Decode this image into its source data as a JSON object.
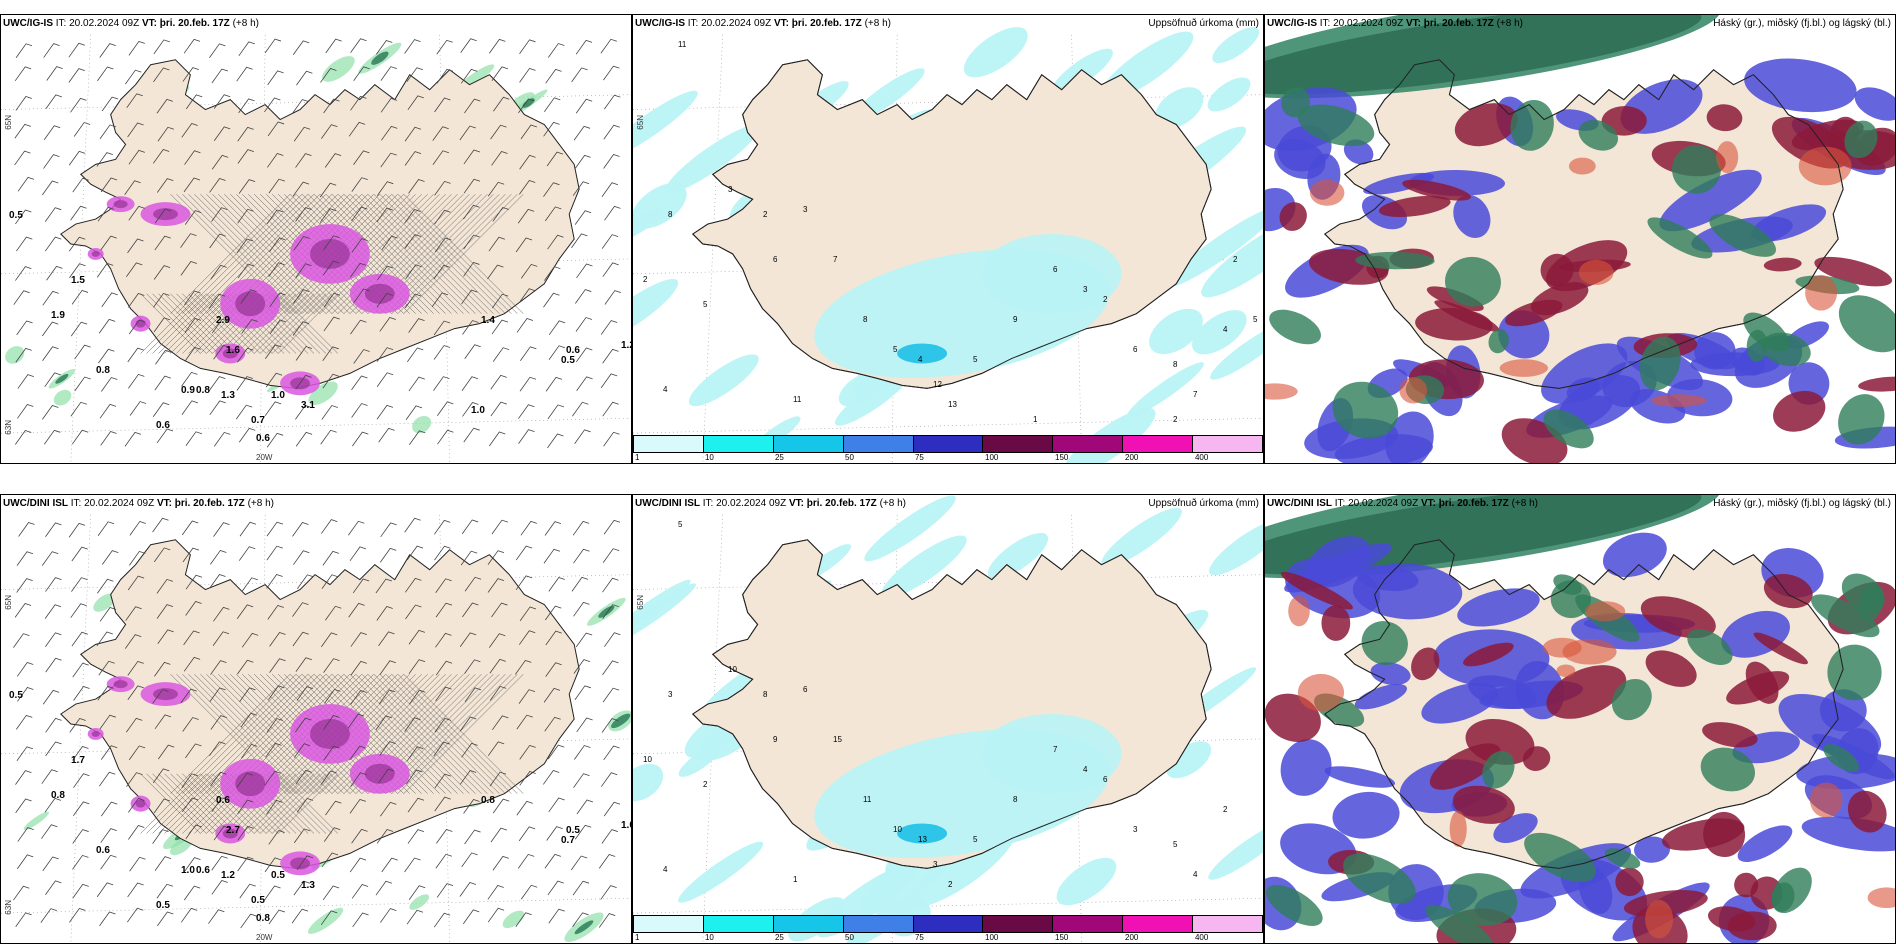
{
  "colors": {
    "land": "#f3e6d6",
    "sea": "#ffffff",
    "precip_light": "#b9f3f6",
    "magenta": "#d957e0",
    "dark_red": "#8b1a3a",
    "blue": "#4a4ad8",
    "green_dark": "#2f7d5a",
    "green_light": "#8fe0a8"
  },
  "colorbar": {
    "colors": [
      "#d9fafb",
      "#1ef0f0",
      "#16c6e8",
      "#3f7fe8",
      "#2d2dbf",
      "#6a0a45",
      "#a0087a",
      "#f010b4",
      "#f6b7f0"
    ],
    "ticks": [
      "1",
      "10",
      "25",
      "50",
      "75",
      "100",
      "150",
      "200",
      "400"
    ]
  },
  "panels": [
    {
      "model": "UWC/IG-IS",
      "it_label": "IT:",
      "it_value": "20.02.2024 09Z",
      "vt_label": "VT:",
      "vt_value": "þri. 20.feb. 17Z",
      "lead": "(+8 h)",
      "right_title": "",
      "coord_labels": [
        "65N",
        "20W",
        "63N"
      ],
      "numbers": [
        "0.5",
        "1.5",
        "1.9",
        "2.9",
        "1.6",
        "3.1",
        "1.0",
        "0.6",
        "0.8",
        "0.9",
        "0.8",
        "1.3",
        "0.6",
        "1.4",
        "0.5",
        "0.6",
        "1.2",
        "0.7",
        "1.0"
      ]
    },
    {
      "model": "UWC/IG-IS",
      "it_label": "IT:",
      "it_value": "20.02.2024 09Z",
      "vt_label": "VT:",
      "vt_value": "þri. 20.feb. 17Z",
      "lead": "(+8 h)",
      "right_title": "Uppsöfnuð úrkoma (mm)",
      "coord_labels": [
        "65N"
      ],
      "numbers": [
        "11",
        "3",
        "2",
        "8",
        "5",
        "4",
        "2",
        "3",
        "6",
        "7",
        "8",
        "5",
        "4",
        "12",
        "13",
        "5",
        "9",
        "6",
        "3",
        "2",
        "11",
        "6",
        "8",
        "7",
        "4",
        "5",
        "2",
        "3",
        "2",
        "1"
      ],
      "show_colorbar": true
    },
    {
      "model": "UWC/IG-IS",
      "it_label": "IT:",
      "it_value": "20.02.2024 09Z",
      "vt_label": "VT:",
      "vt_value": "þri. 20.feb. 17Z",
      "lead": "(+8 h)",
      "right_title": "Háský (gr.), miðský (fj.bl.) og lágský (bl.)",
      "coord_labels": []
    },
    {
      "model": "UWC/DINI ISL",
      "it_label": "IT:",
      "it_value": "20.02.2024 09Z",
      "vt_label": "VT:",
      "vt_value": "þri. 20.feb. 17Z",
      "lead": "(+8 h)",
      "right_title": "",
      "coord_labels": [
        "65N",
        "20W",
        "63N"
      ],
      "numbers": [
        "0.5",
        "1.7",
        "0.8",
        "0.6",
        "2.7",
        "1.3",
        "0.5",
        "0.8",
        "0.6",
        "1.0",
        "0.6",
        "1.2",
        "0.5",
        "0.8",
        "0.7",
        "0.5",
        "1.0",
        "0.5"
      ]
    },
    {
      "model": "UWC/DINI ISL",
      "it_label": "IT:",
      "it_value": "20.02.2024 09Z",
      "vt_label": "VT:",
      "vt_value": "þri. 20.feb. 17Z",
      "lead": "(+8 h)",
      "right_title": "Uppsöfnuð úrkoma (mm)",
      "coord_labels": [
        "65N"
      ],
      "numbers": [
        "5",
        "10",
        "10",
        "3",
        "2",
        "4",
        "8",
        "6",
        "9",
        "15",
        "11",
        "10",
        "13",
        "3",
        "2",
        "5",
        "8",
        "7",
        "4",
        "6",
        "1",
        "3",
        "5",
        "4",
        "2"
      ],
      "show_colorbar": true
    },
    {
      "model": "UWC/DINI ISL",
      "it_label": "IT:",
      "it_value": "20.02.2024 09Z",
      "vt_label": "VT:",
      "vt_value": "þri. 20.feb. 17Z",
      "lead": "(+8 h)",
      "right_title": "Háský (gr.), miðský (fj.bl.) og lágský (bl.)",
      "coord_labels": []
    }
  ]
}
